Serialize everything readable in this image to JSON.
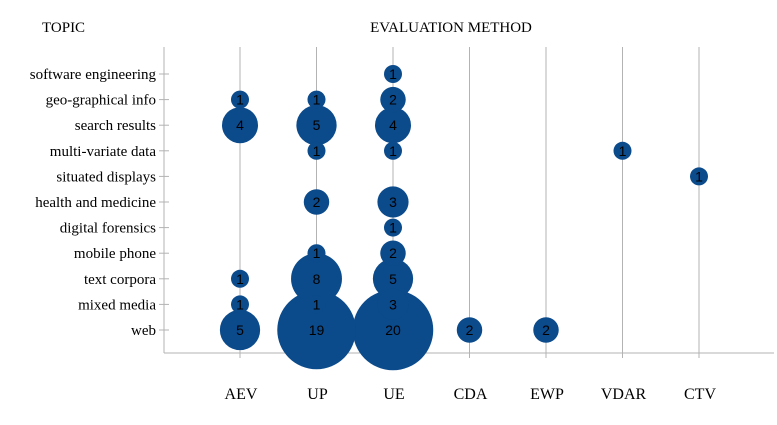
{
  "chart_data": {
    "type": "bubble",
    "title": "",
    "ylabel": "TOPIC",
    "xlabel": "EVALUATION METHOD",
    "categories_x": [
      "AEV",
      "UP",
      "UE",
      "CDA",
      "EWP",
      "VDAR",
      "CTV"
    ],
    "categories_y": [
      "software engineering",
      "geo-graphical info",
      "search results",
      "multi-variate data",
      "situated displays",
      "health and medicine",
      "digital forensics",
      "mobile phone",
      "text corpora",
      "mixed media",
      "web"
    ],
    "points": [
      {
        "x": "UE",
        "y": "software engineering",
        "value": 1
      },
      {
        "x": "AEV",
        "y": "geo-graphical info",
        "value": 1
      },
      {
        "x": "UP",
        "y": "geo-graphical info",
        "value": 1
      },
      {
        "x": "UE",
        "y": "geo-graphical info",
        "value": 2
      },
      {
        "x": "AEV",
        "y": "search results",
        "value": 4
      },
      {
        "x": "UP",
        "y": "search results",
        "value": 5
      },
      {
        "x": "UE",
        "y": "search results",
        "value": 4
      },
      {
        "x": "UP",
        "y": "multi-variate data",
        "value": 1
      },
      {
        "x": "UE",
        "y": "multi-variate data",
        "value": 1
      },
      {
        "x": "VDAR",
        "y": "multi-variate data",
        "value": 1
      },
      {
        "x": "CTV",
        "y": "situated displays",
        "value": 1
      },
      {
        "x": "UP",
        "y": "health and medicine",
        "value": 2
      },
      {
        "x": "UE",
        "y": "health and medicine",
        "value": 3
      },
      {
        "x": "UE",
        "y": "digital forensics",
        "value": 1
      },
      {
        "x": "UP",
        "y": "mobile phone",
        "value": 1
      },
      {
        "x": "UE",
        "y": "mobile phone",
        "value": 2
      },
      {
        "x": "AEV",
        "y": "text corpora",
        "value": 1
      },
      {
        "x": "UP",
        "y": "text corpora",
        "value": 8
      },
      {
        "x": "UE",
        "y": "text corpora",
        "value": 5
      },
      {
        "x": "AEV",
        "y": "mixed media",
        "value": 1
      },
      {
        "x": "UP",
        "y": "mixed media",
        "value": 1
      },
      {
        "x": "UE",
        "y": "mixed media",
        "value": 3
      },
      {
        "x": "AEV",
        "y": "web",
        "value": 5
      },
      {
        "x": "UP",
        "y": "web",
        "value": 19
      },
      {
        "x": "UE",
        "y": "web",
        "value": 20
      },
      {
        "x": "CDA",
        "y": "web",
        "value": 2
      },
      {
        "x": "EWP",
        "y": "web",
        "value": 2
      }
    ],
    "bubble_color": "#0b4a8b",
    "grid": true,
    "legend": "none"
  }
}
